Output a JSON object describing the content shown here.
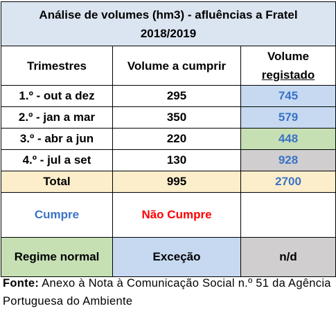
{
  "table": {
    "title_line1": "Análise de volumes (hm3) - afluências a Fratel",
    "title_line2": "2018/2019",
    "headers": {
      "col1": "Trimestres",
      "col2": "Volume a cumprir",
      "col3_line1": "Volume",
      "col3_line2": "registado"
    },
    "rows": [
      {
        "period": "1.º - out a dez",
        "target": "295",
        "recorded": "745",
        "recorded_bg": "#c6d9f1"
      },
      {
        "period": "2.º - jan a mar",
        "target": "350",
        "recorded": "579",
        "recorded_bg": "#c6d9f1"
      },
      {
        "period": "3.º - abr a jun",
        "target": "220",
        "recorded": "448",
        "recorded_bg": "#c6e0b4"
      },
      {
        "period": "4.º - jul a set",
        "target": "130",
        "recorded": "928",
        "recorded_bg": "#d0cece"
      }
    ],
    "total": {
      "label": "Total",
      "target": "995",
      "recorded": "2700"
    },
    "legend": {
      "cumpre": "Cumpre",
      "nao_cumpre": "Não Cumpre",
      "blank": ""
    },
    "status": {
      "normal": "Regime normal",
      "excecao": "Exceção",
      "nd": "n/d"
    }
  },
  "source": {
    "label": "Fonte:",
    "text": "Anexo à Nota à Comunicação Social n.º 51 da Agência Portuguesa do Ambiente"
  },
  "colors": {
    "title_bg": "#dbe5f1",
    "total_bg": "#fdeecb",
    "blue_text": "#3a72c6",
    "red_text": "#ff0000",
    "blue_bg": "#c6d9f1",
    "green_bg": "#c6e0b4",
    "gray_bg": "#d0cece"
  }
}
